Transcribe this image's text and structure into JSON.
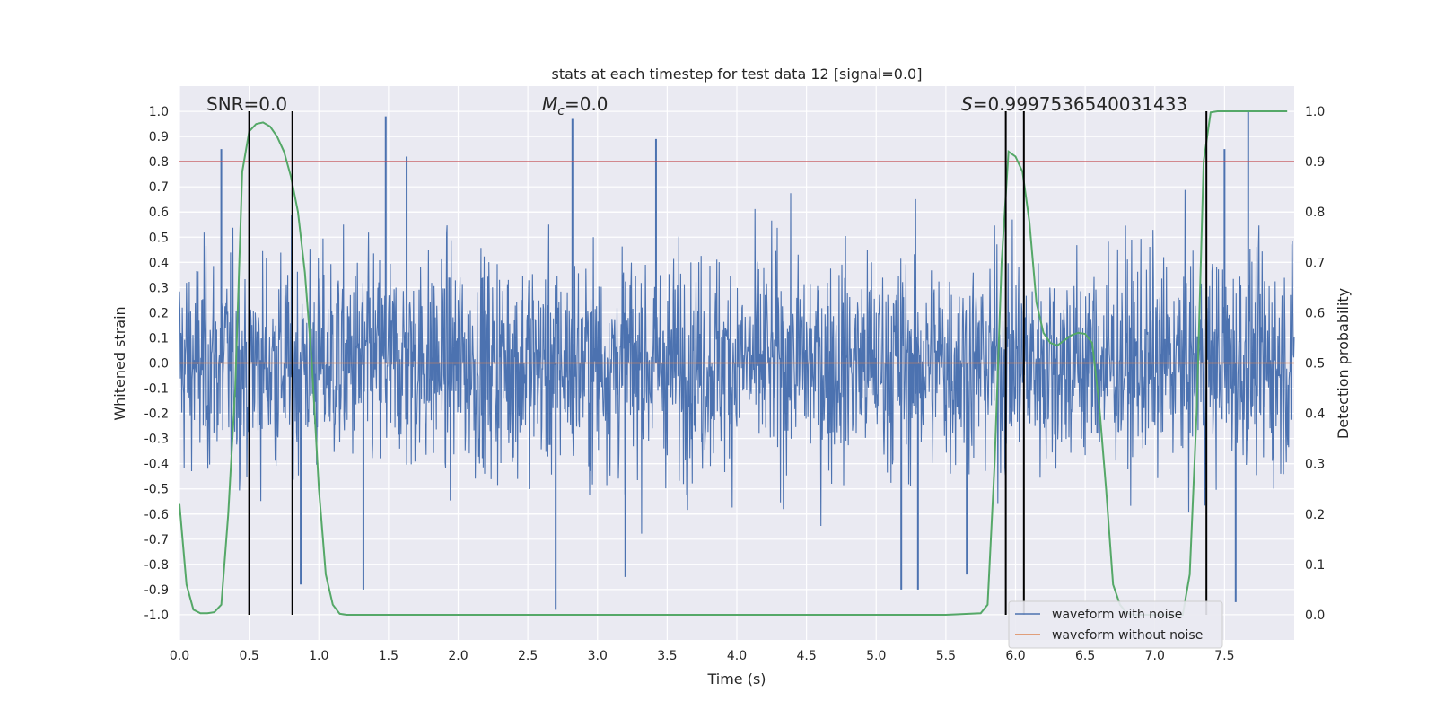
{
  "chart_data": {
    "type": "line",
    "title": "stats at each timestep for test data 12 [signal=0.0]",
    "xlabel": "Time (s)",
    "ylabel_left": "Whitened strain",
    "ylabel_right": "Detection probability",
    "xlim": [
      0.0,
      8.0
    ],
    "ylim_left": [
      -1.1,
      1.1
    ],
    "ylim_right": [
      -0.05,
      1.05
    ],
    "x_ticks": [
      "0.0",
      "0.5",
      "1.0",
      "1.5",
      "2.0",
      "2.5",
      "3.0",
      "3.5",
      "4.0",
      "4.5",
      "5.0",
      "5.5",
      "6.0",
      "6.5",
      "7.0",
      "7.5"
    ],
    "y_ticks_left": [
      "1.0",
      "0.9",
      "0.8",
      "0.7",
      "0.6",
      "0.5",
      "0.4",
      "0.3",
      "0.2",
      "0.1",
      "0.0",
      "-0.1",
      "-0.2",
      "-0.3",
      "-0.4",
      "-0.5",
      "-0.6",
      "-0.7",
      "-0.8",
      "-0.9",
      "-1.0"
    ],
    "y_ticks_right": [
      "1.0",
      "0.9",
      "0.8",
      "0.7",
      "0.6",
      "0.5",
      "0.4",
      "0.3",
      "0.2",
      "0.1",
      "0.0"
    ],
    "grid": true,
    "legend_position": "lower-right",
    "annotations": {
      "snr": "SNR=0.0",
      "mc_symbol": "M",
      "mc_sub": "c",
      "mc_value": "=0.0",
      "s_symbol": "S",
      "s_value": "=0.9997536540031433"
    },
    "threshold_right": 0.9,
    "vertical_lines_x": [
      0.5,
      0.81,
      5.93,
      6.06,
      7.37
    ],
    "series": [
      {
        "name": "waveform with noise",
        "color": "#4c72b0",
        "kind": "noise",
        "envelope": 0.55,
        "peaks": [
          {
            "x": 0.3,
            "y": 0.85
          },
          {
            "x": 1.48,
            "y": 0.98
          },
          {
            "x": 1.63,
            "y": 0.82
          },
          {
            "x": 2.82,
            "y": 0.97
          },
          {
            "x": 3.42,
            "y": 0.89
          },
          {
            "x": 7.67,
            "y": 1.0
          },
          {
            "x": 7.5,
            "y": 0.85
          },
          {
            "x": 0.87,
            "y": -0.88
          },
          {
            "x": 1.32,
            "y": -0.9
          },
          {
            "x": 2.7,
            "y": -0.98
          },
          {
            "x": 3.2,
            "y": -0.85
          },
          {
            "x": 5.18,
            "y": -0.9
          },
          {
            "x": 5.3,
            "y": -0.9
          },
          {
            "x": 5.65,
            "y": -0.84
          },
          {
            "x": 7.58,
            "y": -0.95
          }
        ]
      },
      {
        "name": "waveform without noise",
        "color": "#dd8452",
        "x": [
          0.0,
          8.0
        ],
        "y": [
          0.0,
          0.0
        ]
      },
      {
        "name": "detection probability",
        "color": "#55a868",
        "axis": "right",
        "x": [
          0.0,
          0.05,
          0.1,
          0.15,
          0.2,
          0.25,
          0.3,
          0.35,
          0.4,
          0.45,
          0.5,
          0.55,
          0.6,
          0.65,
          0.7,
          0.75,
          0.8,
          0.85,
          0.9,
          0.95,
          1.0,
          1.05,
          1.1,
          1.15,
          1.2,
          1.25,
          1.3,
          5.5,
          5.75,
          5.8,
          5.85,
          5.9,
          5.95,
          6.0,
          6.05,
          6.1,
          6.15,
          6.2,
          6.25,
          6.3,
          6.35,
          6.4,
          6.45,
          6.5,
          6.55,
          6.6,
          6.65,
          6.7,
          6.75,
          6.8,
          6.85,
          6.9,
          7.2,
          7.25,
          7.3,
          7.35,
          7.4,
          7.45,
          7.5,
          7.55,
          7.95
        ],
        "y": [
          0.22,
          0.06,
          0.01,
          0.003,
          0.003,
          0.005,
          0.02,
          0.2,
          0.45,
          0.88,
          0.96,
          0.975,
          0.978,
          0.97,
          0.95,
          0.92,
          0.87,
          0.8,
          0.68,
          0.5,
          0.25,
          0.08,
          0.02,
          0.002,
          0.0,
          0.0,
          0.0,
          0.0,
          0.003,
          0.02,
          0.3,
          0.7,
          0.92,
          0.91,
          0.88,
          0.78,
          0.62,
          0.56,
          0.54,
          0.535,
          0.545,
          0.555,
          0.56,
          0.558,
          0.54,
          0.42,
          0.25,
          0.06,
          0.02,
          0.003,
          0.0,
          0.0,
          0.0,
          0.08,
          0.4,
          0.9,
          0.998,
          1.0,
          1.0,
          1.0,
          1.0
        ]
      },
      {
        "name": "threshold",
        "color": "#c44e52",
        "axis": "right",
        "y_const": 0.9
      }
    ],
    "legend": [
      "waveform with noise",
      "waveform without noise"
    ]
  }
}
